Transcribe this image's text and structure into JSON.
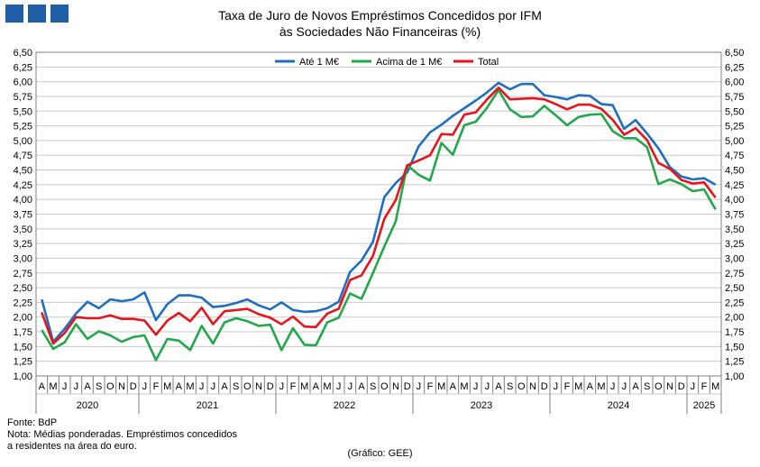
{
  "header": {
    "title_line1": "Taxa de Juro de Novos Empréstimos Concedidos por IFM",
    "title_line2": "às Sociedades Não Financeiras (%)"
  },
  "footer": {
    "source": "Fonte: BdP",
    "note_line1": "Nota: Médias ponderadas. Empréstimos concedidos",
    "note_line2": "a residentes na área do euro.",
    "credit": "(Gráfico: GEE)"
  },
  "colors": {
    "brand": "#1f5fa8",
    "ate_1m": "#1f6fc0",
    "acima_1m": "#22a84a",
    "total": "#e8141b"
  },
  "chart_data": {
    "type": "line",
    "ylim": [
      1.0,
      6.5
    ],
    "ytick_step": 0.25,
    "yticks": [
      "1,00",
      "1,25",
      "1,50",
      "1,75",
      "2,00",
      "2,25",
      "2,50",
      "2,75",
      "3,00",
      "3,25",
      "3,50",
      "3,75",
      "4,00",
      "4,25",
      "4,50",
      "4,75",
      "5,00",
      "5,25",
      "5,50",
      "5,75",
      "6,00",
      "6,25",
      "6,50"
    ],
    "legend_position": "top-center",
    "grid": "horizontal",
    "x": [
      "A",
      "M",
      "J",
      "J",
      "A",
      "S",
      "O",
      "N",
      "D",
      "J",
      "F",
      "M",
      "A",
      "M",
      "J",
      "J",
      "A",
      "S",
      "O",
      "N",
      "D",
      "J",
      "F",
      "M",
      "A",
      "M",
      "J",
      "J",
      "A",
      "S",
      "O",
      "N",
      "D",
      "J",
      "F",
      "M",
      "A",
      "M",
      "J",
      "J",
      "A",
      "S",
      "O",
      "N",
      "D",
      "J",
      "F",
      "M",
      "A",
      "M",
      "J",
      "J",
      "A",
      "S",
      "O",
      "N",
      "D",
      "J",
      "F",
      "M"
    ],
    "years": [
      {
        "label": "2020",
        "start": 0,
        "end": 8
      },
      {
        "label": "2021",
        "start": 9,
        "end": 20
      },
      {
        "label": "2022",
        "start": 21,
        "end": 32
      },
      {
        "label": "2023",
        "start": 33,
        "end": 44
      },
      {
        "label": "2024",
        "start": 45,
        "end": 56
      },
      {
        "label": "2025",
        "start": 57,
        "end": 59
      }
    ],
    "series": [
      {
        "name": "Até 1 M€",
        "color": "#1f6fc0",
        "values": [
          2.3,
          1.58,
          1.8,
          2.06,
          2.26,
          2.15,
          2.3,
          2.27,
          2.3,
          2.42,
          1.95,
          2.22,
          2.37,
          2.37,
          2.33,
          2.17,
          2.19,
          2.24,
          2.3,
          2.2,
          2.13,
          2.25,
          2.12,
          2.09,
          2.1,
          2.15,
          2.26,
          2.77,
          2.96,
          3.28,
          4.04,
          4.28,
          4.46,
          4.9,
          5.14,
          5.27,
          5.42,
          5.55,
          5.68,
          5.82,
          5.98,
          5.87,
          5.96,
          5.96,
          5.77,
          5.74,
          5.7,
          5.77,
          5.76,
          5.62,
          5.6,
          5.2,
          5.35,
          5.12,
          4.87,
          4.55,
          4.39,
          4.34,
          4.36,
          4.25
        ]
      },
      {
        "name": "Acima de 1 M€",
        "color": "#22a84a",
        "values": [
          1.78,
          1.46,
          1.57,
          1.88,
          1.63,
          1.76,
          1.69,
          1.58,
          1.66,
          1.69,
          1.27,
          1.63,
          1.6,
          1.44,
          1.85,
          1.55,
          1.91,
          1.98,
          1.93,
          1.85,
          1.87,
          1.44,
          1.81,
          1.53,
          1.52,
          1.91,
          1.99,
          2.4,
          2.31,
          2.75,
          3.2,
          3.63,
          4.58,
          4.42,
          4.32,
          4.96,
          4.76,
          5.26,
          5.32,
          5.56,
          5.86,
          5.53,
          5.4,
          5.41,
          5.59,
          5.43,
          5.26,
          5.4,
          5.44,
          5.45,
          5.16,
          5.04,
          5.04,
          4.89,
          4.26,
          4.34,
          4.26,
          4.14,
          4.17,
          3.83
        ]
      },
      {
        "name": "Total",
        "color": "#e8141b",
        "values": [
          2.08,
          1.55,
          1.73,
          2.0,
          1.98,
          1.98,
          2.03,
          1.97,
          1.97,
          1.94,
          1.7,
          1.94,
          2.07,
          1.93,
          2.16,
          1.88,
          2.1,
          2.12,
          2.14,
          2.05,
          1.99,
          1.88,
          2.01,
          1.84,
          1.83,
          2.06,
          2.14,
          2.63,
          2.71,
          3.04,
          3.67,
          3.99,
          4.58,
          4.66,
          4.75,
          5.11,
          5.1,
          5.44,
          5.48,
          5.7,
          5.9,
          5.7,
          5.71,
          5.72,
          5.7,
          5.62,
          5.53,
          5.61,
          5.61,
          5.54,
          5.35,
          5.1,
          5.21,
          5.01,
          4.62,
          4.52,
          4.33,
          4.27,
          4.29,
          4.03
        ]
      }
    ]
  }
}
